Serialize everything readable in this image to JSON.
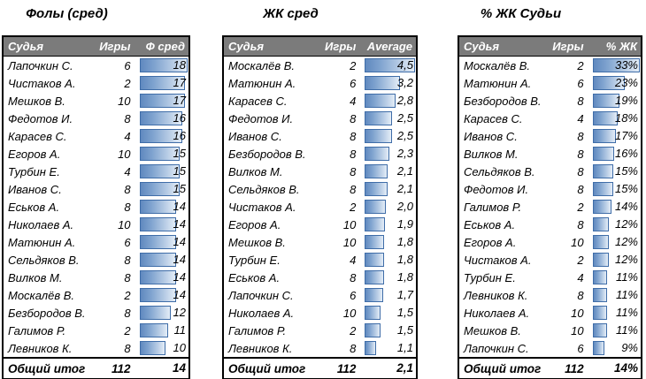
{
  "page": {
    "background": "#ffffff"
  },
  "colors": {
    "header_bg": "#7b7b7b",
    "header_text": "#ffffff",
    "table_border": "#000000",
    "bar_fill_start": "#6089bf",
    "bar_fill_end": "#e4edf7",
    "bar_border": "#3f6da8"
  },
  "chart_data": [
    {
      "type": "table",
      "title": "Фолы (сред)",
      "columns": [
        "Судья",
        "Игры",
        "Ф сред"
      ],
      "bar_scale_max": 18,
      "bar_scale_min": 0,
      "rows": [
        {
          "name": "Лапочкин С.",
          "games": "6",
          "value": "18"
        },
        {
          "name": "Чистаков А.",
          "games": "2",
          "value": "17"
        },
        {
          "name": "Мешков В.",
          "games": "10",
          "value": "17"
        },
        {
          "name": "Федотов И.",
          "games": "8",
          "value": "16"
        },
        {
          "name": "Карасев С.",
          "games": "4",
          "value": "16"
        },
        {
          "name": "Егоров А.",
          "games": "10",
          "value": "15"
        },
        {
          "name": "Турбин Е.",
          "games": "4",
          "value": "15"
        },
        {
          "name": "Иванов С.",
          "games": "8",
          "value": "15"
        },
        {
          "name": "Еськов А.",
          "games": "8",
          "value": "14"
        },
        {
          "name": "Николаев А.",
          "games": "10",
          "value": "14"
        },
        {
          "name": "Матюнин А.",
          "games": "6",
          "value": "14"
        },
        {
          "name": "Сельдяков В.",
          "games": "8",
          "value": "14"
        },
        {
          "name": "Вилков М.",
          "games": "8",
          "value": "14"
        },
        {
          "name": "Москалёв В.",
          "games": "2",
          "value": "14"
        },
        {
          "name": "Безбородов В.",
          "games": "8",
          "value": "12"
        },
        {
          "name": "Галимов Р.",
          "games": "2",
          "value": "11"
        },
        {
          "name": "Левников К.",
          "games": "8",
          "value": "10"
        }
      ],
      "footer": {
        "label": "Общий итог",
        "games": "112",
        "value": "14"
      }
    },
    {
      "type": "table",
      "title": "ЖК сред",
      "columns": [
        "Судья",
        "Игры",
        "Average"
      ],
      "bar_scale_max": 4.5,
      "bar_scale_min": 0,
      "rows": [
        {
          "name": "Москалёв В.",
          "games": "2",
          "value": "4,5"
        },
        {
          "name": "Матюнин А.",
          "games": "6",
          "value": "3,2"
        },
        {
          "name": "Карасев С.",
          "games": "4",
          "value": "2,8"
        },
        {
          "name": "Федотов И.",
          "games": "8",
          "value": "2,5"
        },
        {
          "name": "Иванов С.",
          "games": "8",
          "value": "2,5"
        },
        {
          "name": "Безбородов В.",
          "games": "8",
          "value": "2,3"
        },
        {
          "name": "Вилков М.",
          "games": "8",
          "value": "2,1"
        },
        {
          "name": "Сельдяков В.",
          "games": "8",
          "value": "2,1"
        },
        {
          "name": "Чистаков А.",
          "games": "2",
          "value": "2,0"
        },
        {
          "name": "Егоров А.",
          "games": "10",
          "value": "1,9"
        },
        {
          "name": "Мешков В.",
          "games": "10",
          "value": "1,8"
        },
        {
          "name": "Турбин Е.",
          "games": "4",
          "value": "1,8"
        },
        {
          "name": "Еськов А.",
          "games": "8",
          "value": "1,8"
        },
        {
          "name": "Лапочкин С.",
          "games": "6",
          "value": "1,7"
        },
        {
          "name": "Николаев А.",
          "games": "10",
          "value": "1,5"
        },
        {
          "name": "Галимов Р.",
          "games": "2",
          "value": "1,5"
        },
        {
          "name": "Левников К.",
          "games": "8",
          "value": "1,1"
        }
      ],
      "footer": {
        "label": "Общий итог",
        "games": "112",
        "value": "2,1"
      }
    },
    {
      "type": "table",
      "title": "% ЖК Судьи",
      "columns": [
        "Судья",
        "Игры",
        "% ЖК"
      ],
      "bar_scale_max": 33,
      "bar_scale_min": 0,
      "rows": [
        {
          "name": "Москалёв В.",
          "games": "2",
          "value": "33%"
        },
        {
          "name": "Матюнин А.",
          "games": "6",
          "value": "23%"
        },
        {
          "name": "Безбородов В.",
          "games": "8",
          "value": "19%"
        },
        {
          "name": "Карасев С.",
          "games": "4",
          "value": "18%"
        },
        {
          "name": "Иванов С.",
          "games": "8",
          "value": "17%"
        },
        {
          "name": "Вилков М.",
          "games": "8",
          "value": "16%"
        },
        {
          "name": "Сельдяков В.",
          "games": "8",
          "value": "15%"
        },
        {
          "name": "Федотов И.",
          "games": "8",
          "value": "15%"
        },
        {
          "name": "Галимов Р.",
          "games": "2",
          "value": "14%"
        },
        {
          "name": "Еськов А.",
          "games": "8",
          "value": "12%"
        },
        {
          "name": "Егоров А.",
          "games": "10",
          "value": "12%"
        },
        {
          "name": "Чистаков А.",
          "games": "2",
          "value": "12%"
        },
        {
          "name": "Турбин Е.",
          "games": "4",
          "value": "11%"
        },
        {
          "name": "Левников К.",
          "games": "8",
          "value": "11%"
        },
        {
          "name": "Николаев А.",
          "games": "10",
          "value": "11%"
        },
        {
          "name": "Мешков В.",
          "games": "10",
          "value": "11%"
        },
        {
          "name": "Лапочкин С.",
          "games": "6",
          "value": "9%"
        }
      ],
      "footer": {
        "label": "Общий итог",
        "games": "112",
        "value": "14%"
      }
    }
  ]
}
